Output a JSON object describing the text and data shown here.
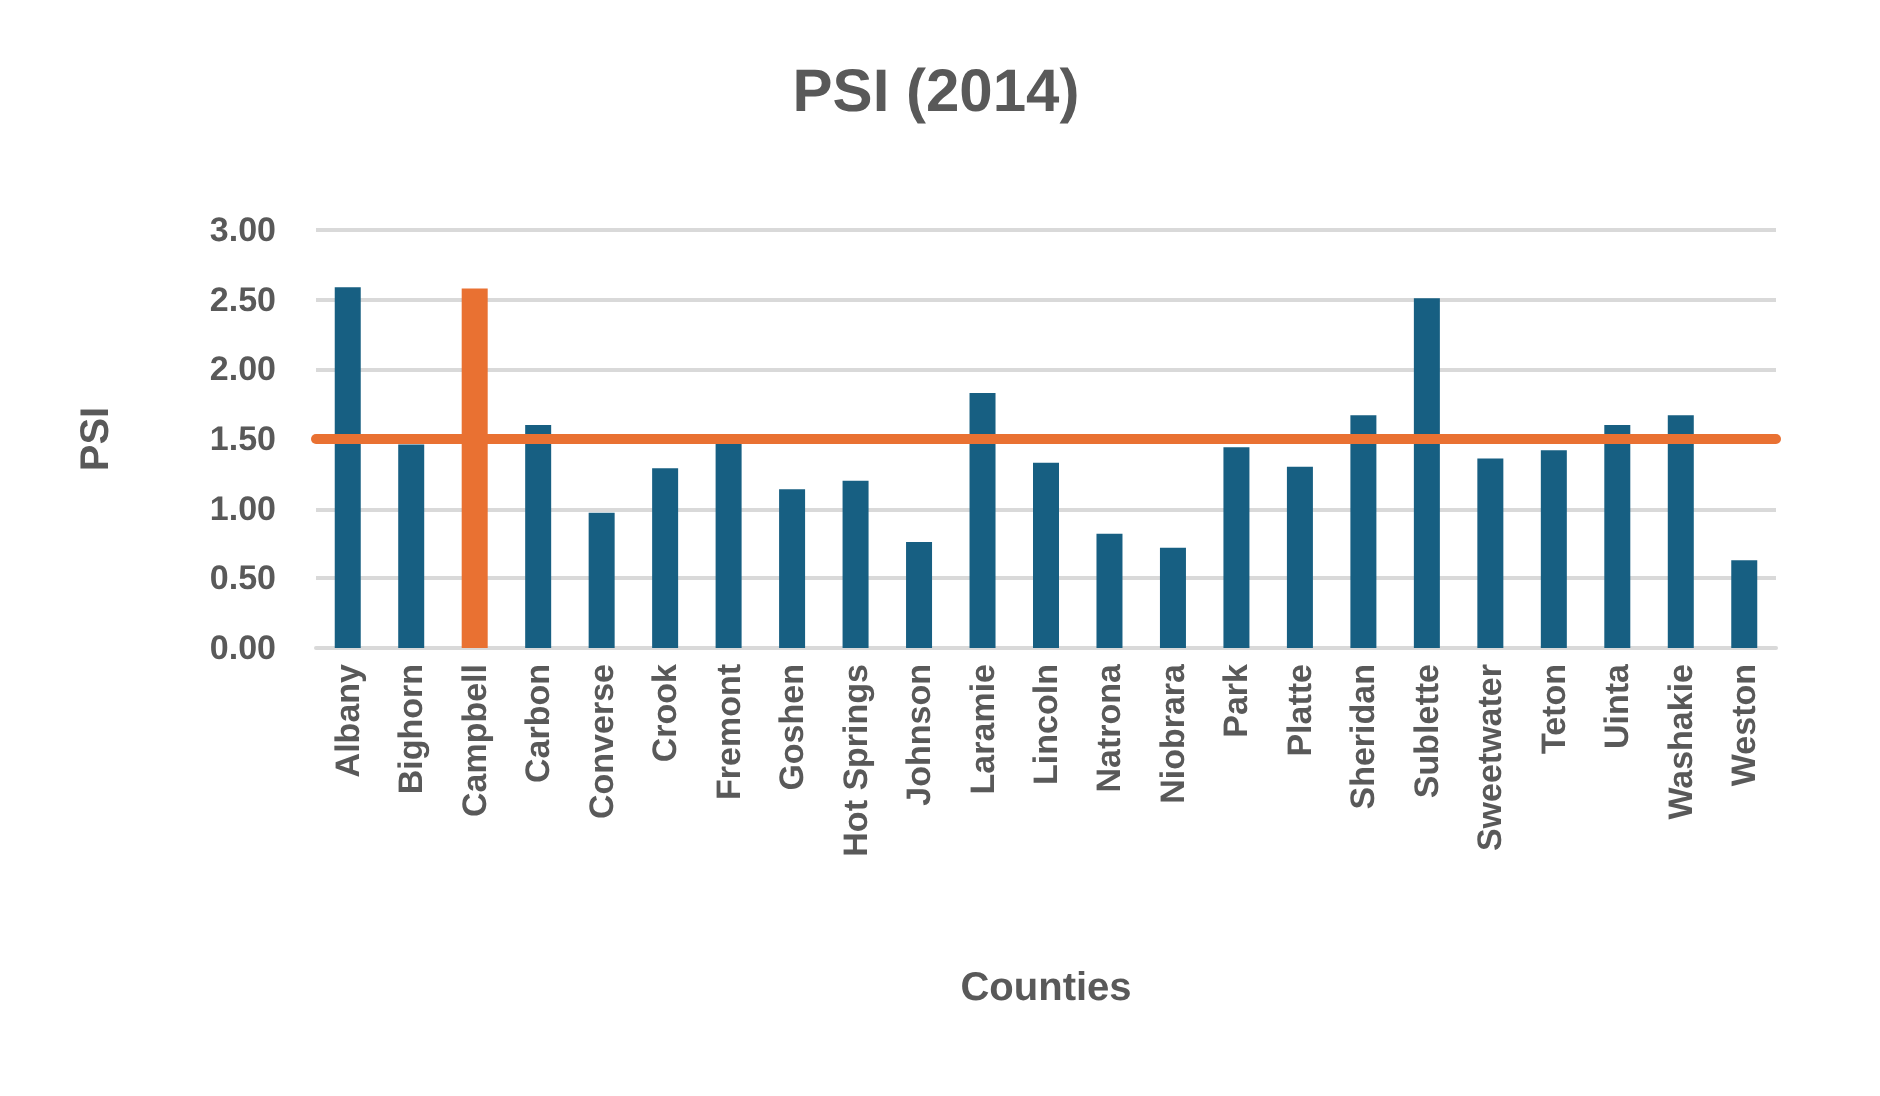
{
  "chart_data": {
    "type": "bar",
    "title": "PSI (2014)",
    "xlabel": "Counties",
    "ylabel": "PSI",
    "categories": [
      "Albany",
      "Bighorn",
      "Campbell",
      "Carbon",
      "Converse",
      "Crook",
      "Fremont",
      "Goshen",
      "Hot Springs",
      "Johnson",
      "Laramie",
      "Lincoln",
      "Natrona",
      "Niobrara",
      "Park",
      "Platte",
      "Sheridan",
      "Sublette",
      "Sweetwater",
      "Teton",
      "Uinta",
      "Washakie",
      "Weston"
    ],
    "values": [
      2.59,
      1.46,
      2.58,
      1.6,
      0.97,
      1.29,
      1.49,
      1.14,
      1.2,
      0.76,
      1.83,
      1.33,
      0.82,
      0.72,
      1.44,
      1.3,
      1.67,
      2.51,
      1.36,
      1.42,
      1.6,
      1.67,
      0.63
    ],
    "colors": [
      "#175f82",
      "#175f82",
      "#e97132",
      "#175f82",
      "#175f82",
      "#175f82",
      "#175f82",
      "#175f82",
      "#175f82",
      "#175f82",
      "#175f82",
      "#175f82",
      "#175f82",
      "#175f82",
      "#175f82",
      "#175f82",
      "#175f82",
      "#175f82",
      "#175f82",
      "#175f82",
      "#175f82",
      "#175f82",
      "#175f82"
    ],
    "ylim": [
      0,
      3
    ],
    "yticks": [
      {
        "value": 0,
        "label": "0.00"
      },
      {
        "value": 0.5,
        "label": "0.50"
      },
      {
        "value": 1,
        "label": "1.00"
      },
      {
        "value": 1.5,
        "label": "1.50"
      },
      {
        "value": 2,
        "label": "2.00"
      },
      {
        "value": 2.5,
        "label": "2.50"
      },
      {
        "value": 3,
        "label": "3.00"
      }
    ],
    "ref_lines": [
      {
        "axis": "y",
        "value": 1.51,
        "color": "#e97132"
      }
    ],
    "grid": "y"
  }
}
